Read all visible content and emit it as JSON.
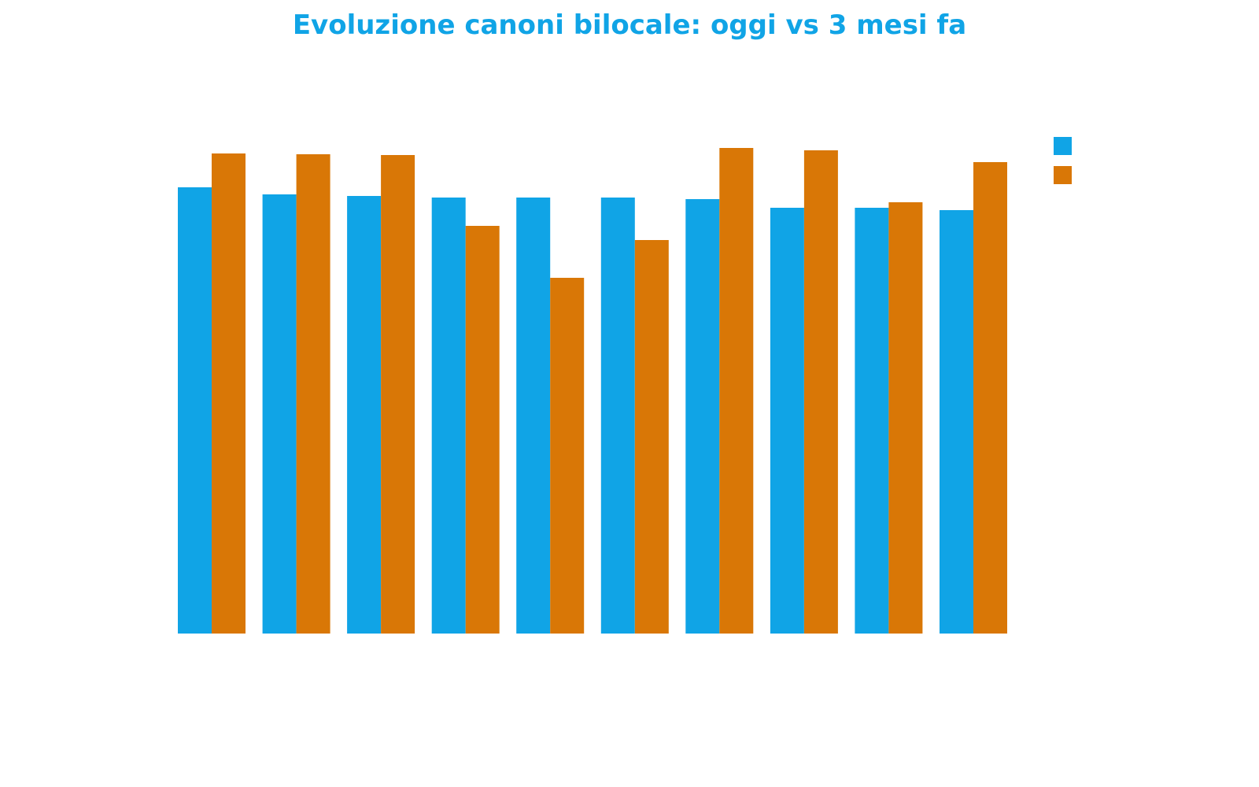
{
  "chart_data": {
    "type": "bar",
    "title": "Evoluzione canoni bilocale: oggi vs 3 mesi fa",
    "xlabel": "",
    "ylabel": "",
    "categories": [
      "",
      "",
      "",
      "",
      "",
      "",
      "",
      "",
      "",
      ""
    ],
    "series": [
      {
        "color": "#10a4e6",
        "values": [
          567,
          558,
          556,
          554,
          554,
          554,
          552,
          541,
          541,
          538
        ]
      },
      {
        "color": "#d97706",
        "values": [
          610,
          609,
          608,
          518,
          452,
          500,
          617,
          614,
          548,
          599
        ]
      }
    ],
    "ylim": [
      0,
      700
    ],
    "grid": false,
    "legend": "top-right"
  }
}
